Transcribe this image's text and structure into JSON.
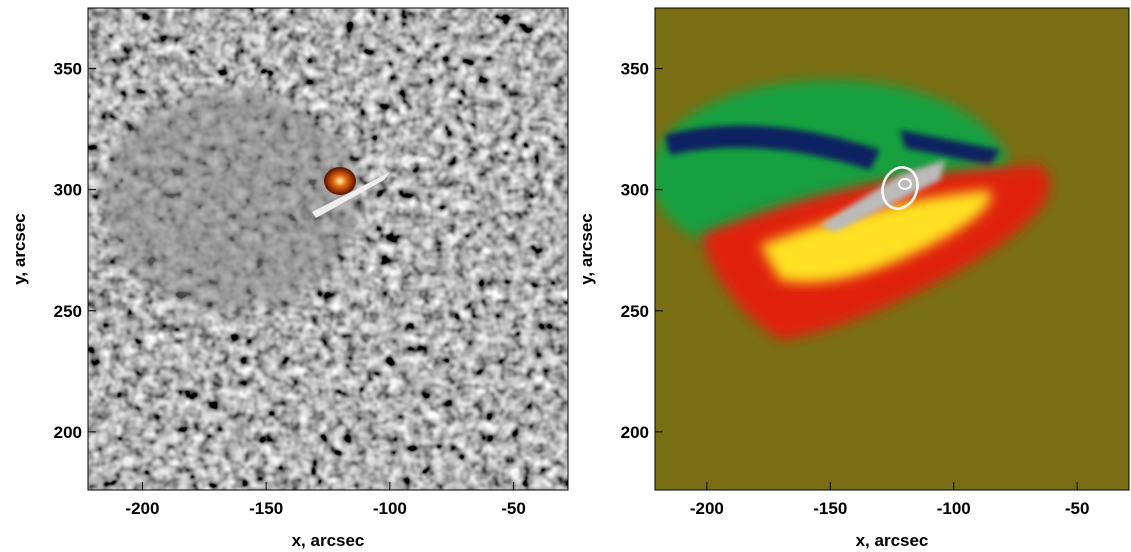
{
  "chart_data": [
    {
      "type": "image",
      "xlabel": "x, arcsec",
      "ylabel": "y, arcsec",
      "xlim": [
        -222,
        -28
      ],
      "ylim": [
        176,
        375
      ],
      "xticks": [
        -200,
        -150,
        -100,
        -50
      ],
      "yticks": [
        200,
        250,
        300,
        350
      ]
    },
    {
      "type": "image",
      "xlabel": "x, arcsec",
      "ylabel": "y, arcsec",
      "xlim": [
        -221,
        -29
      ],
      "ylim": [
        176,
        375
      ],
      "xticks": [
        -200,
        -150,
        -100,
        -50
      ],
      "yticks": [
        200,
        250,
        300,
        350
      ]
    }
  ]
}
